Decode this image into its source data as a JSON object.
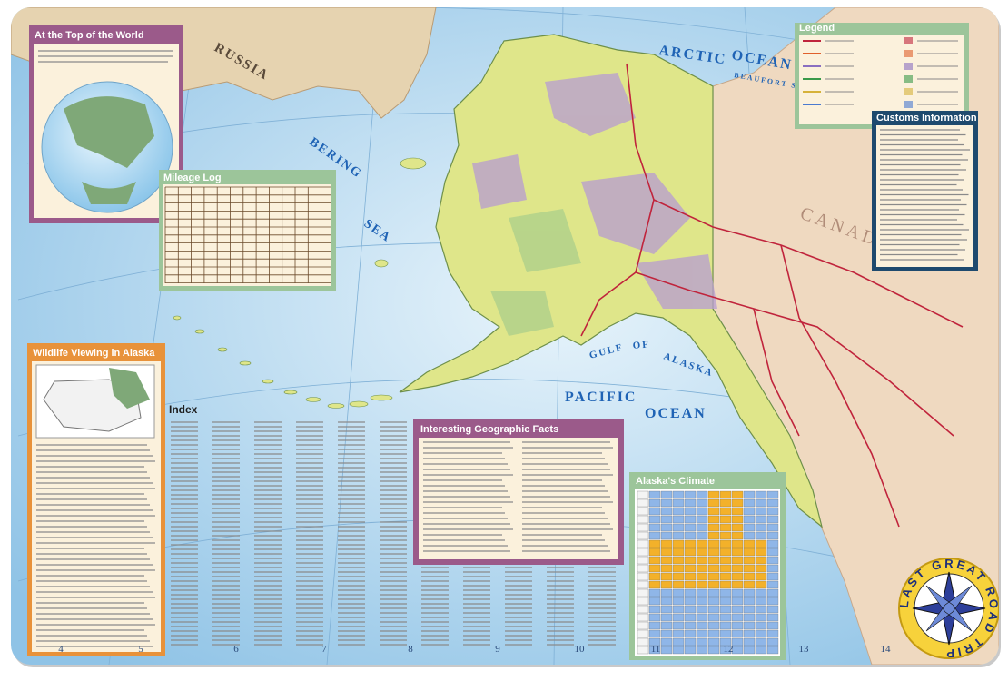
{
  "map_labels": {
    "russia": "RUSSIA",
    "bering": "BERING",
    "sea": "SEA",
    "arctic": "ARCTIC",
    "ocean_arctic": "OCEAN",
    "beaufort": "BEAUFORT SEA",
    "gulf": "GULF",
    "of": "OF",
    "alaska": "ALASKA",
    "pacific": "PACIFIC",
    "ocean_pacific": "OCEAN",
    "canada": "C A N A D A"
  },
  "panels": {
    "top_of_world": {
      "title": "At the Top of the World"
    },
    "mileage_log": {
      "title": "Mileage Log"
    },
    "wildlife": {
      "title": "Wildlife Viewing in Alaska"
    },
    "index": {
      "title": "Index"
    },
    "geographic_facts": {
      "title": "Interesting Geographic Facts"
    },
    "climate": {
      "title": "Alaska's Climate"
    },
    "legend": {
      "title": "Legend"
    },
    "customs": {
      "title": "Customs Information"
    }
  },
  "grid_numbers": {
    "bottom": [
      "4",
      "5",
      "6",
      "7",
      "8",
      "9",
      "10",
      "11",
      "12",
      "13",
      "14"
    ]
  },
  "compass": {
    "text": "LAST GREAT ROAD TRIP"
  }
}
